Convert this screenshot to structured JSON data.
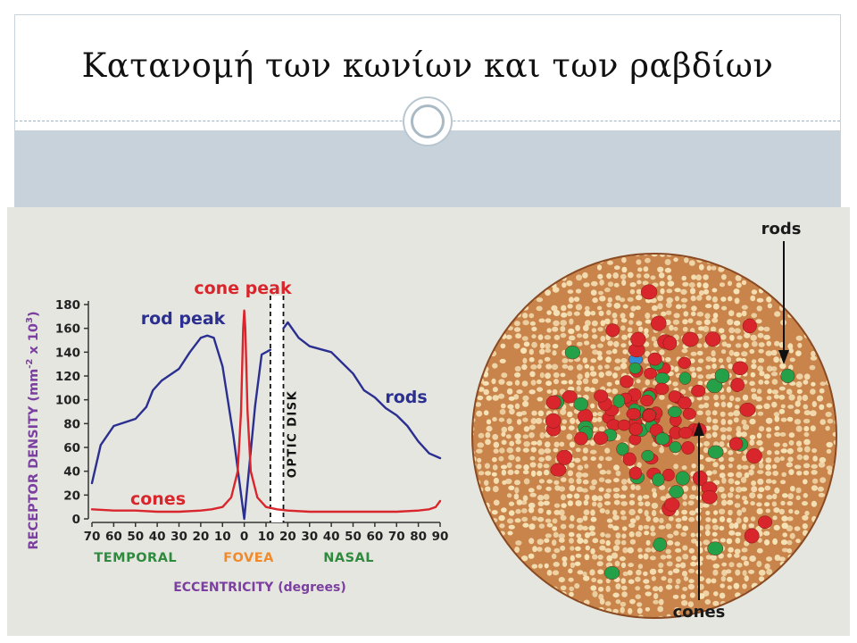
{
  "slide": {
    "title": "Κατανομή των κωνίων και των ραβδίων"
  },
  "colors": {
    "rods": "#2b2f8f",
    "cones": "#d8262c",
    "axis_label": "#7b3fa0",
    "temporal": "#2e8b3e",
    "fovea": "#f08a2a",
    "nasal": "#2e8b3e",
    "optic_disk_fill": "#ffffff",
    "retina_bg": "#c8844a",
    "rod_cell": "#f6e3b8",
    "cone_red": "#d8262c",
    "cone_green": "#24a048",
    "cone_blue": "#2f8fd8"
  },
  "chart_data": {
    "type": "line",
    "ylabel": "RECEPTOR DENSITY (mm-2 x 103)",
    "ylabel_parts": {
      "main": "RECEPTOR DENSITY (mm",
      "sup1": "-2",
      "mid": " x 10",
      "sup2": "3",
      "end": ")"
    },
    "xlabel": "ECCENTRICITY (degrees)",
    "ylim": [
      0,
      180
    ],
    "xlim": [
      -70,
      90
    ],
    "y_ticks": [
      0,
      20,
      40,
      60,
      80,
      100,
      120,
      140,
      160,
      180
    ],
    "x_tick_values": [
      -70,
      -60,
      -50,
      -40,
      -30,
      -20,
      -10,
      0,
      10,
      20,
      30,
      40,
      50,
      60,
      70,
      80,
      90
    ],
    "x_tick_labels": [
      "70",
      "60",
      "50",
      "40",
      "30",
      "20",
      "10",
      "0",
      "10",
      "20",
      "30",
      "40",
      "50",
      "60",
      "70",
      "80",
      "90"
    ],
    "region_labels": [
      {
        "text": "TEMPORAL",
        "x": -50,
        "color_key": "temporal"
      },
      {
        "text": "FOVEA",
        "x": 2,
        "color_key": "fovea"
      },
      {
        "text": "NASAL",
        "x": 48,
        "color_key": "nasal"
      }
    ],
    "optic_disk": {
      "label": "OPTIC DISK",
      "x_range": [
        12,
        18
      ]
    },
    "series": [
      {
        "name": "rods",
        "color_key": "rods",
        "x": [
          -70,
          -66,
          -60,
          -50,
          -45,
          -42,
          -38,
          -30,
          -25,
          -20,
          -17,
          -14,
          -10,
          -5,
          0,
          5,
          8,
          12,
          14,
          16,
          18,
          20,
          25,
          30,
          40,
          50,
          55,
          60,
          65,
          70,
          75,
          80,
          85,
          90
        ],
        "y": [
          30,
          62,
          78,
          84,
          94,
          108,
          116,
          126,
          140,
          152,
          154,
          152,
          128,
          70,
          0,
          95,
          138,
          142,
          null,
          null,
          160,
          165,
          152,
          145,
          140,
          122,
          108,
          102,
          93,
          87,
          78,
          65,
          55,
          51
        ]
      },
      {
        "name": "cones",
        "color_key": "cones",
        "x": [
          -70,
          -60,
          -50,
          -40,
          -30,
          -20,
          -15,
          -10,
          -6,
          -3,
          -1.5,
          -0.5,
          0,
          0.5,
          1.5,
          3,
          6,
          10,
          15,
          20,
          30,
          40,
          50,
          60,
          70,
          80,
          85,
          88,
          90
        ],
        "y": [
          8,
          7,
          7,
          6,
          6,
          7,
          8,
          10,
          18,
          40,
          90,
          160,
          175,
          160,
          90,
          40,
          18,
          10,
          8,
          7,
          6,
          6,
          6,
          6,
          6,
          7,
          8,
          10,
          15
        ]
      }
    ],
    "annotations": [
      {
        "text": "rod peak",
        "color_key": "rods"
      },
      {
        "text": "cone peak",
        "color_key": "cones"
      },
      {
        "text": "rods",
        "color_key": "rods"
      },
      {
        "text": "cones",
        "color_key": "cones"
      }
    ]
  },
  "retina_mosaic": {
    "labels": {
      "rods": "rods",
      "cones": "cones"
    }
  }
}
